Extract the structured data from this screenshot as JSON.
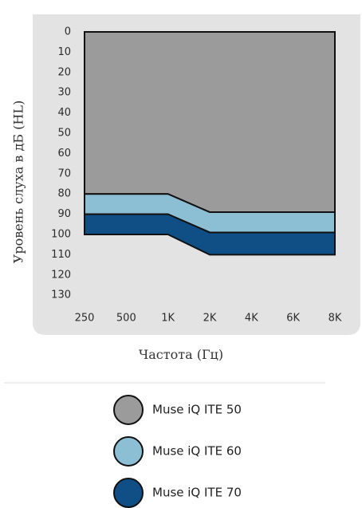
{
  "chart_data": {
    "type": "area",
    "xlabel": "Частота (Гц)",
    "ylabel": "Уровень слуха в дБ (HL)",
    "categories": [
      "250",
      "500",
      "1K",
      "2K",
      "4K",
      "6K",
      "8K"
    ],
    "y_ticks": [
      0,
      10,
      20,
      30,
      40,
      50,
      60,
      70,
      80,
      90,
      100,
      110,
      120,
      130
    ],
    "ylim": [
      0,
      130
    ],
    "y_inverted": true,
    "series": [
      {
        "name": "Muse iQ ITE 50",
        "color": "#9b9b9b",
        "top": [
          0,
          0,
          0,
          0,
          0,
          0,
          0
        ],
        "bottom": [
          80,
          80,
          80,
          89,
          89,
          89,
          89
        ]
      },
      {
        "name": "Muse iQ ITE 60",
        "color": "#8cbfd4",
        "top": [
          80,
          80,
          80,
          89,
          89,
          89,
          89
        ],
        "bottom": [
          90,
          90,
          90,
          99,
          99,
          99,
          99
        ]
      },
      {
        "name": "Muse iQ ITE 70",
        "color": "#0f4f86",
        "top": [
          90,
          90,
          90,
          99,
          99,
          99,
          99
        ],
        "bottom": [
          100,
          100,
          100,
          110,
          110,
          110,
          110
        ]
      }
    ]
  }
}
